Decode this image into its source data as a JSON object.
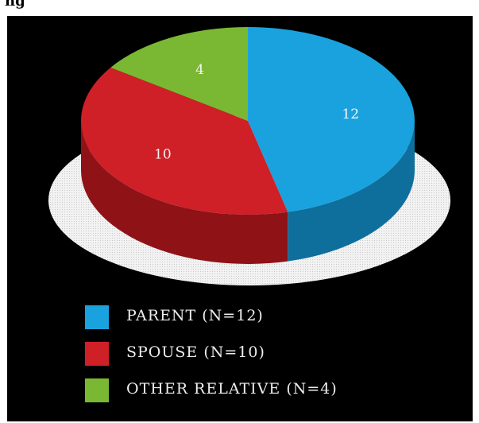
{
  "page": {
    "top_text": "ng"
  },
  "chart_data": {
    "type": "pie",
    "title": "",
    "style": "3d",
    "categories": [
      "PARENT (N=12)",
      "SPOUSE (N=10)",
      "OTHER RELATIVE (N=4)"
    ],
    "values": [
      12,
      10,
      4
    ],
    "data_labels": [
      "12",
      "10",
      "4"
    ],
    "colors": [
      "#1aa2df",
      "#cf1f27",
      "#7ab833"
    ],
    "side_colors": [
      "#0f6f9c",
      "#8f1217",
      "#50801e"
    ],
    "legend": {
      "placement": "bottom-left",
      "entries": [
        "PARENT (N=12)",
        "SPOUSE (N=10)",
        "OTHER RELATIVE (N=4)"
      ]
    }
  }
}
